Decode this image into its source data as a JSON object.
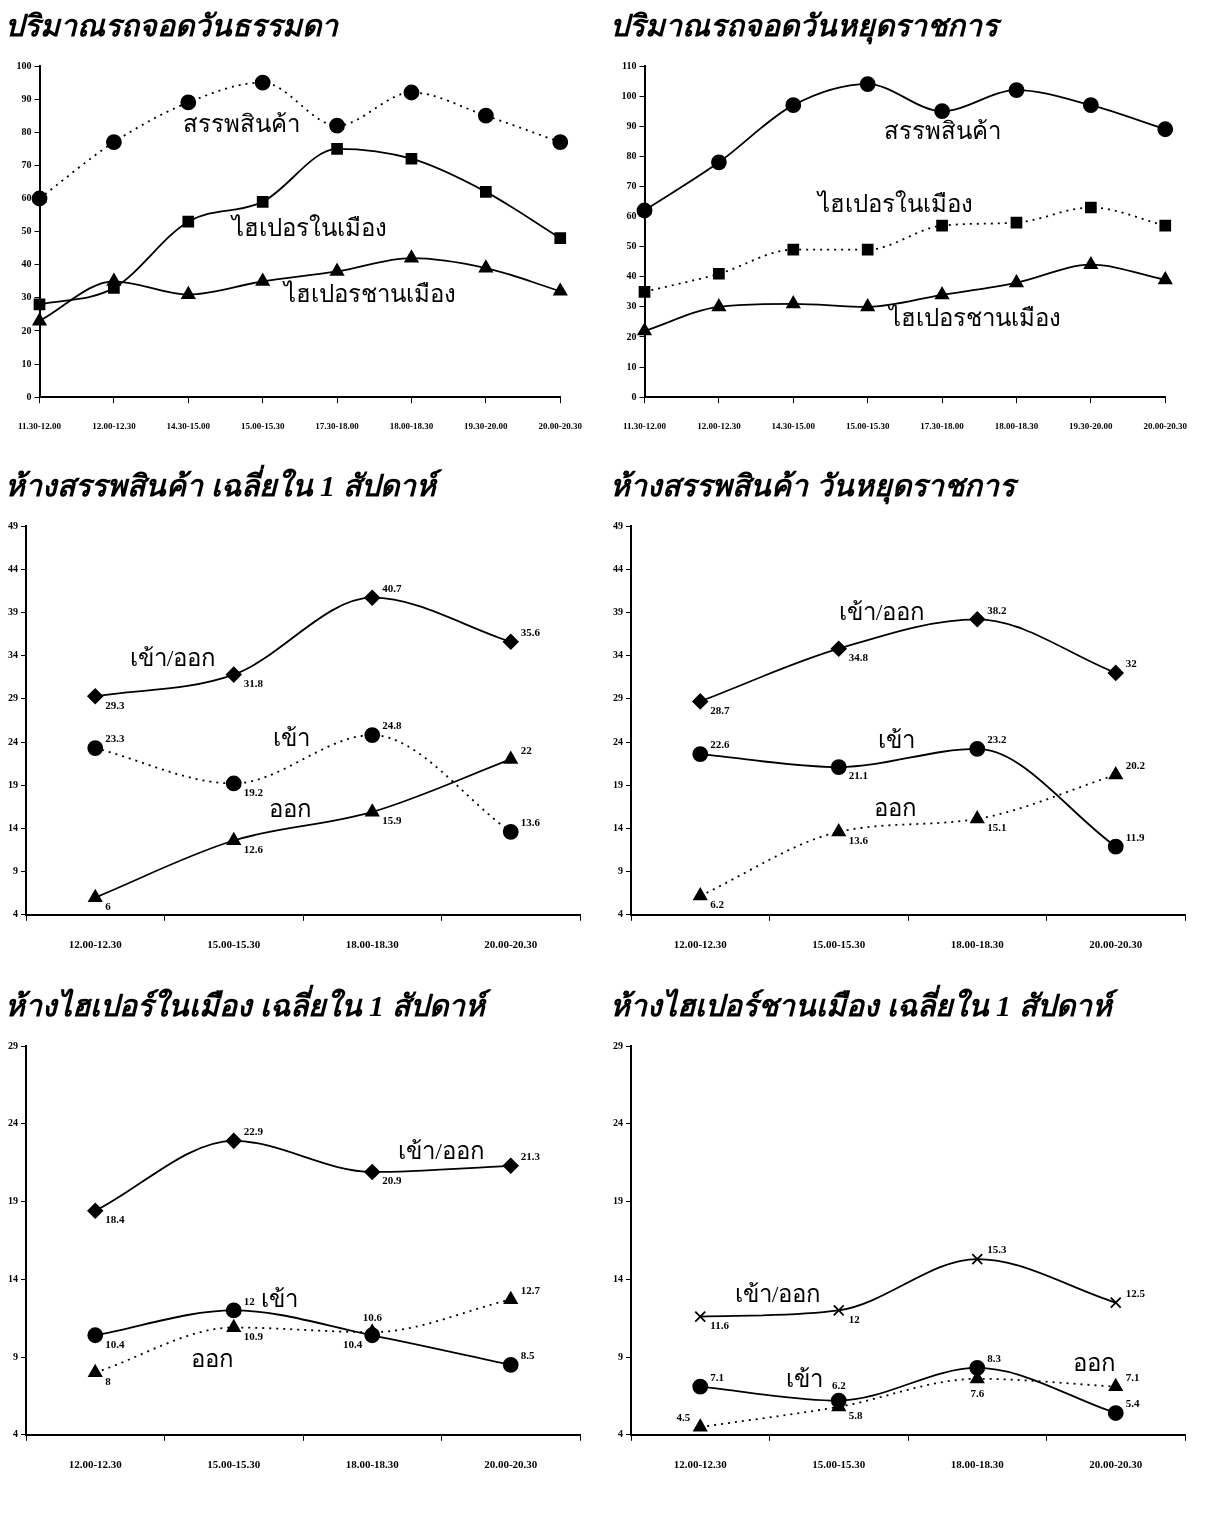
{
  "chart_data": [
    {
      "type": "line",
      "title": "ปริมาณรถจอดวันธรรมดา",
      "categories": [
        "11.30-12.00",
        "12.00-12.30",
        "14.30-15.00",
        "15.00-15.30",
        "17.30-18.00",
        "18.00-18.30",
        "19.30-20.00",
        "20.00-20.30"
      ],
      "ylim": [
        0,
        100
      ],
      "yticks": [
        0,
        10,
        20,
        30,
        40,
        50,
        60,
        70,
        80,
        90,
        100
      ],
      "grid": false,
      "legend": false,
      "series": [
        {
          "name": "สรรพสินค้า",
          "color": "#000000",
          "marker": "circle",
          "line_style": "dotted",
          "values": [
            60,
            77,
            89,
            95,
            82,
            92,
            85,
            77
          ]
        },
        {
          "name": "ไฮเปอรในเมือง",
          "color": "#000000",
          "marker": "square",
          "line_style": "solid",
          "values": [
            28,
            33,
            53,
            59,
            75,
            72,
            62,
            48
          ]
        },
        {
          "name": "ไฮเปอรชานเมือง",
          "color": "#000000",
          "marker": "triangle",
          "line_style": "solid",
          "values": [
            23,
            35,
            31,
            35,
            38,
            42,
            39,
            32
          ]
        }
      ]
    },
    {
      "type": "line",
      "title": "ปริมาณรถจอดวันหยุดราชการ",
      "categories": [
        "11.30-12.00",
        "12.00-12.30",
        "14.30-15.00",
        "15.00-15.30",
        "17.30-18.00",
        "18.00-18.30",
        "19.30-20.00",
        "20.00-20.30"
      ],
      "ylim": [
        0,
        110
      ],
      "yticks": [
        0,
        10,
        20,
        30,
        40,
        50,
        60,
        70,
        80,
        90,
        100,
        110
      ],
      "grid": false,
      "legend": false,
      "series": [
        {
          "name": "สรรพสินค้า",
          "color": "#000000",
          "marker": "circle",
          "line_style": "solid",
          "values": [
            62,
            78,
            97,
            104,
            95,
            102,
            97,
            89
          ]
        },
        {
          "name": "ไฮเปอรในเมือง",
          "color": "#000000",
          "marker": "square",
          "line_style": "dotted",
          "values": [
            35,
            41,
            49,
            49,
            57,
            58,
            63,
            57
          ]
        },
        {
          "name": "ไฮเปอรชานเมือง",
          "color": "#000000",
          "marker": "triangle",
          "line_style": "solid",
          "values": [
            22,
            30,
            31,
            30,
            34,
            38,
            44,
            39
          ]
        }
      ]
    },
    {
      "type": "line",
      "title": "ห้างสรรพสินค้า เฉลี่ยใน 1 สัปดาห์",
      "categories": [
        "12.00-12.30",
        "15.00-15.30",
        "18.00-18.30",
        "20.00-20.30"
      ],
      "ylim": [
        4,
        49
      ],
      "yticks": [
        4,
        9,
        14,
        19,
        24,
        29,
        34,
        39,
        44,
        49
      ],
      "grid": false,
      "legend": false,
      "data_labels": true,
      "series": [
        {
          "name": "เข้า/ออก",
          "color": "#000000",
          "marker": "diamond",
          "line_style": "solid",
          "values": [
            29.3,
            31.8,
            40.7,
            35.6
          ]
        },
        {
          "name": "เข้า",
          "color": "#000000",
          "marker": "circle",
          "line_style": "dotted",
          "values": [
            23.3,
            19.2,
            24.8,
            13.6
          ]
        },
        {
          "name": "ออก",
          "color": "#000000",
          "marker": "triangle",
          "line_style": "solid",
          "values": [
            6,
            12.6,
            15.9,
            22
          ]
        }
      ]
    },
    {
      "type": "line",
      "title": "ห้างสรรพสินค้า วันหยุดราชการ",
      "categories": [
        "12.00-12.30",
        "15.00-15.30",
        "18.00-18.30",
        "20.00-20.30"
      ],
      "ylim": [
        4,
        49
      ],
      "yticks": [
        4,
        9,
        14,
        19,
        24,
        29,
        34,
        39,
        44,
        49
      ],
      "grid": false,
      "legend": false,
      "data_labels": true,
      "series": [
        {
          "name": "เข้า/ออก",
          "color": "#000000",
          "marker": "diamond",
          "line_style": "solid",
          "values": [
            28.7,
            34.8,
            38.2,
            32
          ]
        },
        {
          "name": "เข้า",
          "color": "#000000",
          "marker": "circle",
          "line_style": "solid",
          "values": [
            22.6,
            21.1,
            23.2,
            11.9
          ]
        },
        {
          "name": "ออก",
          "color": "#000000",
          "marker": "triangle",
          "line_style": "dotted",
          "values": [
            6.2,
            13.6,
            15.1,
            20.2
          ]
        }
      ]
    },
    {
      "type": "line",
      "title": "ห้างไฮเปอร์ในเมือง เฉลี่ยใน 1 สัปดาห์",
      "categories": [
        "12.00-12.30",
        "15.00-15.30",
        "18.00-18.30",
        "20.00-20.30"
      ],
      "ylim": [
        4,
        29
      ],
      "yticks": [
        4,
        9,
        14,
        19,
        24,
        29
      ],
      "grid": false,
      "legend": false,
      "data_labels": true,
      "series": [
        {
          "name": "เข้า/ออก",
          "color": "#000000",
          "marker": "diamond",
          "line_style": "solid",
          "values": [
            18.4,
            22.9,
            20.9,
            21.3
          ]
        },
        {
          "name": "เข้า",
          "color": "#000000",
          "marker": "circle",
          "line_style": "solid",
          "values": [
            10.4,
            12,
            10.4,
            8.5
          ]
        },
        {
          "name": "ออก",
          "color": "#000000",
          "marker": "triangle",
          "line_style": "dotted",
          "values": [
            8,
            10.9,
            10.6,
            12.7
          ]
        }
      ]
    },
    {
      "type": "line",
      "title": "ห้างไฮเปอร์ชานเมือง เฉลี่ยใน 1 สัปดาห์",
      "categories": [
        "12.00-12.30",
        "15.00-15.30",
        "18.00-18.30",
        "20.00-20.30"
      ],
      "ylim": [
        4,
        29
      ],
      "yticks": [
        4,
        9,
        14,
        19,
        24,
        29
      ],
      "grid": false,
      "legend": false,
      "data_labels": true,
      "series": [
        {
          "name": "เข้า/ออก",
          "color": "#000000",
          "marker": "cross",
          "line_style": "solid",
          "values": [
            11.6,
            12,
            15.3,
            12.5
          ]
        },
        {
          "name": "เข้า",
          "color": "#000000",
          "marker": "circle",
          "line_style": "solid",
          "values": [
            7.1,
            6.2,
            8.3,
            5.4
          ]
        },
        {
          "name": "ออก",
          "color": "#000000",
          "marker": "triangle",
          "line_style": "dotted",
          "values": [
            4.5,
            5.8,
            7.6,
            7.1
          ]
        }
      ]
    }
  ]
}
